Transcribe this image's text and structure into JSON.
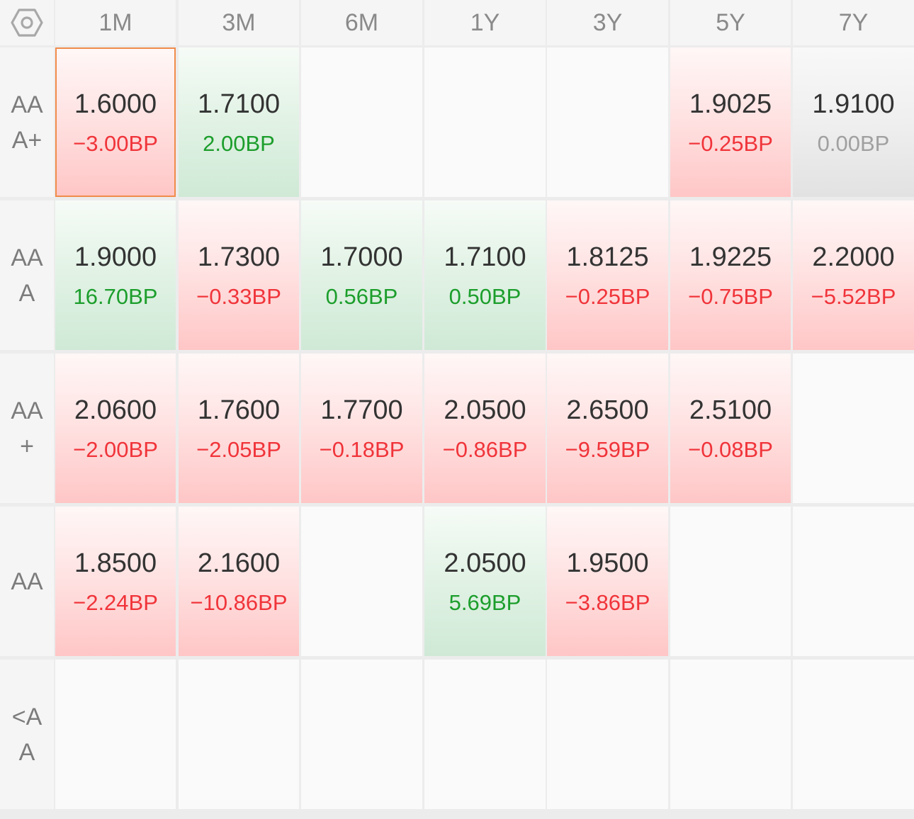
{
  "colors": {
    "negative": "#f0343a",
    "positive": "#1c9e2c",
    "neutral": "#a0a0a0",
    "selected_border": "#f08c4a"
  },
  "corner_icon": "hexagon-settings-icon",
  "columns": [
    "1M",
    "3M",
    "6M",
    "1Y",
    "3Y",
    "5Y",
    "7Y"
  ],
  "rows": [
    {
      "label": "AA\nA+",
      "cells": [
        {
          "rate": "1.6000",
          "change": "−3.00BP",
          "trend": "down",
          "selected": true
        },
        {
          "rate": "1.7100",
          "change": "2.00BP",
          "trend": "up"
        },
        {},
        {},
        {},
        {
          "rate": "1.9025",
          "change": "−0.25BP",
          "trend": "down"
        },
        {
          "rate": "1.9100",
          "change": "0.00BP",
          "trend": "flat"
        }
      ]
    },
    {
      "label": "AA\nA",
      "cells": [
        {
          "rate": "1.9000",
          "change": "16.70BP",
          "trend": "up"
        },
        {
          "rate": "1.7300",
          "change": "−0.33BP",
          "trend": "down"
        },
        {
          "rate": "1.7000",
          "change": "0.56BP",
          "trend": "up"
        },
        {
          "rate": "1.7100",
          "change": "0.50BP",
          "trend": "up"
        },
        {
          "rate": "1.8125",
          "change": "−0.25BP",
          "trend": "down"
        },
        {
          "rate": "1.9225",
          "change": "−0.75BP",
          "trend": "down"
        },
        {
          "rate": "2.2000",
          "change": "−5.52BP",
          "trend": "down"
        }
      ]
    },
    {
      "label": "AA\n+",
      "cells": [
        {
          "rate": "2.0600",
          "change": "−2.00BP",
          "trend": "down"
        },
        {
          "rate": "1.7600",
          "change": "−2.05BP",
          "trend": "down"
        },
        {
          "rate": "1.7700",
          "change": "−0.18BP",
          "trend": "down"
        },
        {
          "rate": "2.0500",
          "change": "−0.86BP",
          "trend": "down"
        },
        {
          "rate": "2.6500",
          "change": "−9.59BP",
          "trend": "down"
        },
        {
          "rate": "2.5100",
          "change": "−0.08BP",
          "trend": "down"
        },
        {}
      ]
    },
    {
      "label": "AA",
      "cells": [
        {
          "rate": "1.8500",
          "change": "−2.24BP",
          "trend": "down"
        },
        {
          "rate": "2.1600",
          "change": "−10.86BP",
          "trend": "down"
        },
        {},
        {
          "rate": "2.0500",
          "change": "5.69BP",
          "trend": "up"
        },
        {
          "rate": "1.9500",
          "change": "−3.86BP",
          "trend": "down"
        },
        {},
        {}
      ]
    },
    {
      "label": "<A\nA",
      "cells": [
        {},
        {},
        {},
        {},
        {},
        {},
        {}
      ]
    }
  ]
}
